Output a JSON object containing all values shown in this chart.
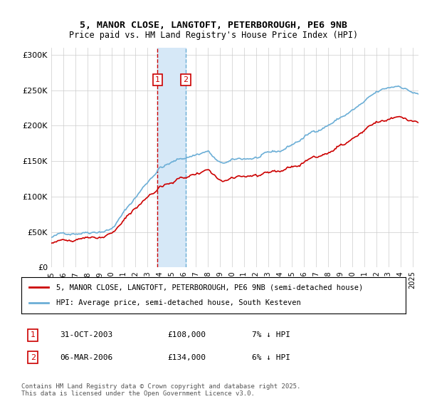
{
  "title_line1": "5, MANOR CLOSE, LANGTOFT, PETERBOROUGH, PE6 9NB",
  "title_line2": "Price paid vs. HM Land Registry's House Price Index (HPI)",
  "legend_line1": "5, MANOR CLOSE, LANGTOFT, PETERBOROUGH, PE6 9NB (semi-detached house)",
  "legend_line2": "HPI: Average price, semi-detached house, South Kesteven",
  "footnote": "Contains HM Land Registry data © Crown copyright and database right 2025.\nThis data is licensed under the Open Government Licence v3.0.",
  "transaction1_date": "31-OCT-2003",
  "transaction1_price": "£108,000",
  "transaction1_hpi": "7% ↓ HPI",
  "transaction2_date": "06-MAR-2006",
  "transaction2_price": "£134,000",
  "transaction2_hpi": "6% ↓ HPI",
  "hpi_color": "#6baed6",
  "price_color": "#cc0000",
  "marker_box_color": "#cc0000",
  "vspan_color": "#d6e8f7",
  "vline1_x": 2003.83,
  "vline2_x": 2006.17,
  "ylim_min": 0,
  "ylim_max": 310000,
  "xlim_min": 1995,
  "xlim_max": 2025.5,
  "background_color": "#ffffff"
}
